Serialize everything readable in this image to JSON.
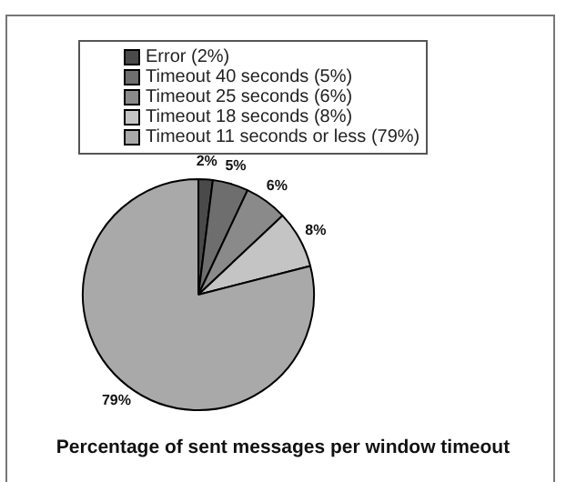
{
  "chart_data": {
    "type": "pie",
    "title": "Percentage of sent messages per window timeout",
    "categories": [
      "Error (2%)",
      "Timeout 40 seconds (5%)",
      "Timeout 25 seconds (6%)",
      "Timeout 18 seconds (8%)",
      "Timeout 11 seconds or less (79%)"
    ],
    "values": [
      2,
      5,
      6,
      8,
      79
    ],
    "value_labels": [
      "2%",
      "5%",
      "6%",
      "8%",
      "79%"
    ],
    "colors": [
      "#4a4a4a",
      "#6e6e6e",
      "#8a8a8a",
      "#c4c4c4",
      "#a9a9a9"
    ],
    "legend": "top"
  }
}
